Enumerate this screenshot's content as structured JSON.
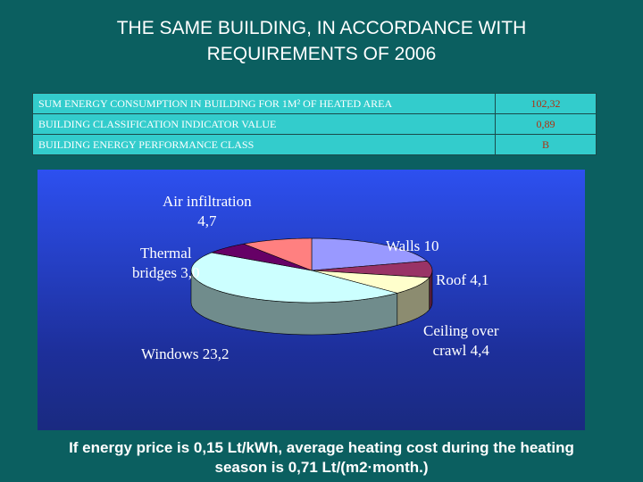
{
  "title_line1": "THE SAME BUILDING, IN ACCORDANCE WITH",
  "title_line2": "REQUIREMENTS OF 2006",
  "table": [
    {
      "label": "SUM ENERGY CONSUMPTION IN BUILDING FOR 1M² OF HEATED AREA",
      "value": "102,32"
    },
    {
      "label": "BUILDING CLASSIFICATION INDICATOR VALUE",
      "value": "0,89"
    },
    {
      "label": "BUILDING ENERGY PERFORMANCE CLASS",
      "value": "B"
    }
  ],
  "chart_data": {
    "type": "pie",
    "title": "",
    "categories": [
      "Walls",
      "Roof",
      "Ceiling over crawl",
      "Windows",
      "Thermal bridges",
      "Air infiltration"
    ],
    "values": [
      10,
      4.1,
      4.4,
      23.2,
      3.0,
      4.7
    ],
    "labels": [
      "Walls 10",
      "Roof 4,1",
      "Ceiling over crawl 4,4",
      "Windows 23,2",
      "Thermal bridges 3,0",
      "Air infiltration 4,7"
    ],
    "colors": [
      "#9999ff",
      "#993366",
      "#ffffcc",
      "#ccffff",
      "#660066",
      "#ff8080"
    ]
  },
  "labels": {
    "air1": "Air infiltration",
    "air2": "4,7",
    "walls": "Walls 10",
    "thermal1": "Thermal",
    "thermal2": "bridges 3,0",
    "roof": "Roof 4,1",
    "ceil1": "Ceiling over",
    "ceil2": "crawl 4,4",
    "windows": "Windows 23,2"
  },
  "footer_line1": "If energy price is 0,15 Lt/kWh, average heating cost during the heating",
  "footer_line2": "season is 0,71 Lt/(m2·month.)"
}
